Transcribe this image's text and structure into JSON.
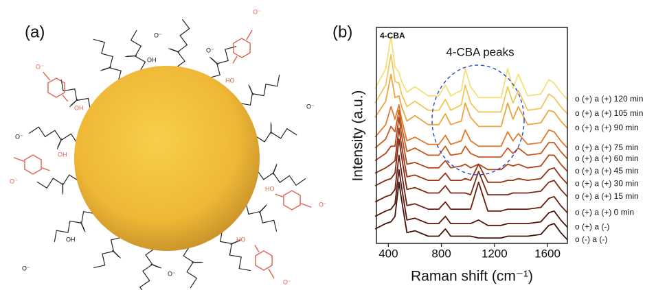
{
  "panel_labels": [
    "(a)",
    "(b)"
  ],
  "diagram": {
    "labels": [
      "O⁻",
      "HO",
      "O⁻",
      "OH",
      "O⁻",
      "OH",
      "O⁻",
      "HO",
      "O⁻",
      "HO",
      "O⁻",
      "O⁻",
      "OH",
      "O⁻",
      "O⁻",
      "OH",
      "O⁻",
      "O⁻"
    ]
  },
  "chart_data": {
    "type": "line",
    "x_label": "Raman shift (cm⁻¹)",
    "y_label": "Intensity (a.u.)",
    "annotations": [
      "4-CBA",
      "4-CBA peaks"
    ],
    "x": [
      300,
      380,
      420,
      450,
      480,
      500,
      540,
      600,
      700,
      780,
      830,
      870,
      950,
      980,
      1020,
      1080,
      1150,
      1250,
      1300,
      1340,
      1380,
      1450,
      1550,
      1610,
      1650,
      1700,
      1750
    ],
    "xlim": [
      310,
      1750
    ],
    "xticks": [
      400,
      800,
      1200,
      1600
    ],
    "ylim": [
      0,
      12
    ],
    "series": [
      {
        "name": "o (+) a (+) 120 min",
        "color": "#f5df78",
        "values": [
          8.6,
          9.7,
          11.5,
          9.8,
          9.5,
          9.0,
          8.4,
          8.7,
          8.2,
          8.2,
          8.8,
          8.2,
          8.5,
          9.7,
          8.7,
          8.1,
          8.1,
          8.1,
          9.7,
          8.6,
          9.4,
          8.2,
          8.3,
          9.1,
          8.9,
          8.4,
          8.0
        ]
      },
      {
        "name": "o (+) a (+) 105 min",
        "color": "#f2c65a",
        "values": [
          7.8,
          8.8,
          10.5,
          9.0,
          8.9,
          8.3,
          7.6,
          7.9,
          7.4,
          7.4,
          8.0,
          7.4,
          7.7,
          8.8,
          7.8,
          7.3,
          7.3,
          7.3,
          8.7,
          7.8,
          8.5,
          7.4,
          7.5,
          8.3,
          8.1,
          7.6,
          7.2
        ]
      },
      {
        "name": "o (+) a (+) 90 min",
        "color": "#eca43f",
        "values": [
          7.0,
          7.9,
          9.4,
          8.1,
          8.2,
          7.6,
          6.8,
          7.1,
          6.6,
          6.6,
          7.2,
          6.6,
          6.8,
          7.8,
          7.0,
          6.5,
          6.5,
          6.5,
          7.8,
          6.9,
          7.6,
          6.6,
          6.7,
          7.4,
          7.3,
          6.8,
          6.4
        ]
      },
      {
        "name": "o (+) a (+) 75 min",
        "color": "#e0792a",
        "values": [
          5.9,
          6.6,
          7.6,
          6.9,
          7.7,
          6.9,
          5.7,
          5.9,
          5.5,
          5.5,
          6.0,
          5.5,
          5.7,
          6.3,
          5.7,
          5.4,
          5.4,
          5.4,
          6.2,
          5.7,
          6.1,
          5.5,
          5.6,
          6.3,
          6.2,
          5.7,
          5.3
        ]
      },
      {
        "name": "o (+) a (+) 60 min",
        "color": "#c9581e",
        "values": [
          5.3,
          5.8,
          6.5,
          6.2,
          7.4,
          6.5,
          5.1,
          5.3,
          4.9,
          4.9,
          5.4,
          4.9,
          5.0,
          5.4,
          5.0,
          4.8,
          4.8,
          4.8,
          5.3,
          5.0,
          5.3,
          4.9,
          5.0,
          5.6,
          5.6,
          5.1,
          4.7
        ]
      },
      {
        "name": "o (+) a (+) 45 min",
        "color": "#b04416",
        "values": [
          4.6,
          5.0,
          5.4,
          5.4,
          7.0,
          6.0,
          4.4,
          4.5,
          4.2,
          4.2,
          4.6,
          4.2,
          4.3,
          4.4,
          4.2,
          4.4,
          4.1,
          4.1,
          4.4,
          4.3,
          4.4,
          4.2,
          4.3,
          4.9,
          4.9,
          4.4,
          4.0
        ]
      },
      {
        "name": "o (+) a (+) 30 min",
        "color": "#963212",
        "values": [
          3.9,
          4.2,
          4.4,
          4.6,
          6.4,
          5.4,
          3.7,
          3.8,
          3.5,
          3.5,
          3.9,
          3.5,
          3.5,
          3.6,
          3.5,
          4.4,
          3.4,
          3.4,
          3.5,
          3.5,
          3.6,
          3.5,
          3.6,
          4.1,
          4.2,
          3.7,
          3.3
        ]
      },
      {
        "name": "o (+) a (+) 15 min",
        "color": "#7e2610",
        "values": [
          3.2,
          3.5,
          3.6,
          3.9,
          5.8,
          4.8,
          3.0,
          3.1,
          2.8,
          2.8,
          3.2,
          2.8,
          2.8,
          2.8,
          2.7,
          4.0,
          2.7,
          2.7,
          2.7,
          2.8,
          2.8,
          2.8,
          2.9,
          3.4,
          3.5,
          3.0,
          2.6
        ]
      },
      {
        "name": "o (+) a (+) 0 min",
        "color": "#6a1d0e",
        "values": [
          2.3,
          2.6,
          2.7,
          3.0,
          4.9,
          3.9,
          2.1,
          2.2,
          1.9,
          1.9,
          2.3,
          1.9,
          1.9,
          1.9,
          1.9,
          3.4,
          1.8,
          1.8,
          1.9,
          1.9,
          1.9,
          1.9,
          2.0,
          2.5,
          2.6,
          2.1,
          1.7
        ]
      },
      {
        "name": "o (+) a (-)",
        "color": "#55150b",
        "values": [
          1.5,
          1.8,
          1.9,
          2.2,
          4.1,
          3.1,
          1.3,
          1.4,
          1.1,
          1.1,
          1.5,
          1.1,
          1.1,
          1.1,
          1.1,
          1.3,
          1.0,
          1.0,
          1.1,
          1.1,
          1.1,
          1.1,
          1.2,
          1.7,
          1.8,
          1.3,
          0.9
        ]
      },
      {
        "name": "o (-) a (-)",
        "color": "#40100a",
        "values": [
          0.8,
          1.1,
          1.2,
          1.5,
          3.4,
          2.4,
          0.6,
          0.7,
          0.4,
          0.4,
          0.8,
          0.4,
          0.4,
          0.4,
          0.4,
          0.3,
          0.3,
          0.3,
          0.4,
          0.4,
          0.4,
          0.4,
          0.5,
          1.0,
          1.1,
          0.6,
          0.2
        ]
      }
    ]
  }
}
